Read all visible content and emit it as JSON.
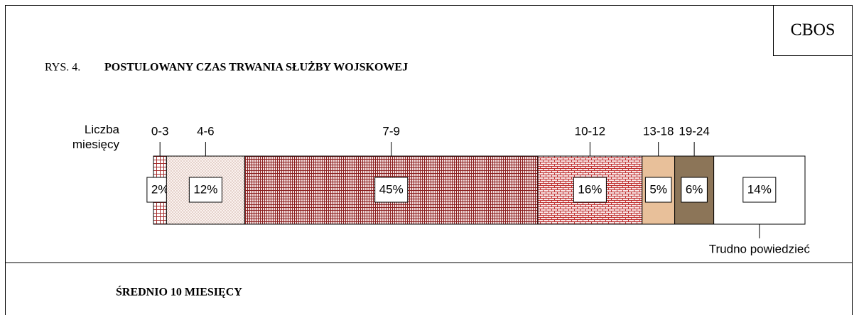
{
  "chart_data": {
    "type": "stacked_bar",
    "source": "CBOS",
    "figure_label": "RYS. 4.",
    "title": "POSTULOWANY CZAS TRWANIA SŁUŻBY WOJSKOWEJ",
    "axis_label": "Liczba miesięcy",
    "annotation": "ŚREDNIO 10 MIESIĘCY",
    "xlim": [
      0,
      100
    ],
    "series": [
      {
        "name": "0-3",
        "color": "#a52a2a",
        "values": [
          2
        ],
        "value_labels": [
          "2%"
        ]
      },
      {
        "name": "4-6",
        "color": "#b08070",
        "values": [
          12
        ],
        "value_labels": [
          "12%"
        ]
      },
      {
        "name": "7-9",
        "color": "#8b2020",
        "values": [
          45
        ],
        "value_labels": [
          "45%"
        ]
      },
      {
        "name": "10-12",
        "color": "#c03030",
        "values": [
          16
        ],
        "value_labels": [
          "16%"
        ]
      },
      {
        "name": "13-18",
        "color": "#e8c09a",
        "values": [
          5
        ],
        "value_labels": [
          "5%"
        ]
      },
      {
        "name": "19-24",
        "color": "#8c7558",
        "values": [
          6
        ],
        "value_labels": [
          "6%"
        ]
      },
      {
        "name": "Trudno powiedzieć",
        "color": "#ffffff",
        "values": [
          14
        ],
        "value_labels": [
          "14%"
        ]
      }
    ]
  }
}
